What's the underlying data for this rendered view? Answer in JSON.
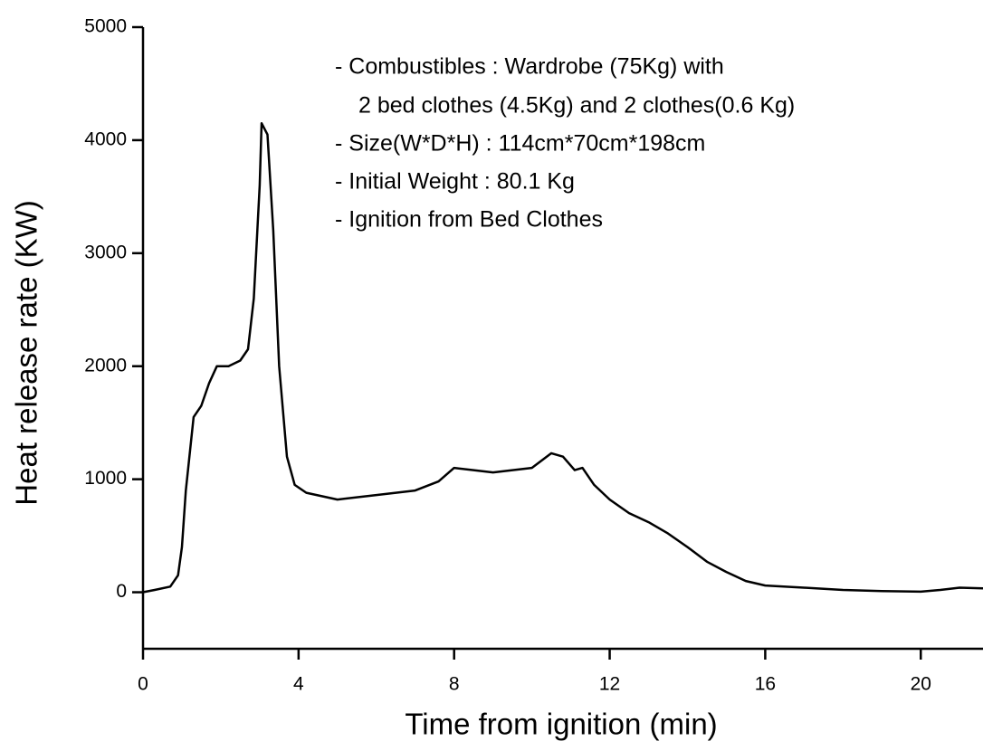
{
  "chart_data": {
    "type": "line",
    "x_label": "Time from ignition (min)",
    "y_label": "Heat release rate (KW)",
    "annotations": [
      "- Combustibles : Wardrobe (75Kg) with",
      "2 bed clothes (4.5Kg) and 2 clothes(0.6 Kg)",
      "- Size(W*D*H) : 114cm*70cm*198cm",
      "- Initial Weight : 80.1 Kg",
      "- Ignition from Bed Clothes"
    ],
    "x": [
      0,
      0.3,
      0.7,
      0.9,
      1.0,
      1.1,
      1.3,
      1.5,
      1.7,
      1.9,
      2.2,
      2.5,
      2.7,
      2.85,
      3.0,
      3.05,
      3.2,
      3.35,
      3.5,
      3.7,
      3.9,
      4.2,
      5,
      6,
      7,
      7.6,
      8,
      8.5,
      9,
      10,
      10.5,
      10.8,
      11.1,
      11.3,
      11.6,
      12,
      12.5,
      13,
      13.5,
      14,
      14.5,
      15,
      15.5,
      16,
      17,
      18,
      19,
      20,
      20.5,
      21,
      21.6
    ],
    "values": [
      0,
      20,
      50,
      150,
      400,
      900,
      1550,
      1650,
      1850,
      2000,
      2000,
      2050,
      2150,
      2600,
      3600,
      4150,
      4050,
      3200,
      2000,
      1200,
      950,
      880,
      820,
      860,
      900,
      980,
      1100,
      1080,
      1060,
      1100,
      1230,
      1200,
      1080,
      1100,
      950,
      820,
      700,
      620,
      520,
      400,
      270,
      180,
      100,
      60,
      40,
      20,
      10,
      5,
      20,
      40,
      35
    ],
    "color": "#000000",
    "xlim": [
      0,
      21.6
    ],
    "xticks": [
      0,
      4,
      8,
      12,
      16,
      20
    ],
    "ylim": [
      -500,
      5000
    ],
    "yticks": [
      0,
      1000,
      2000,
      3000,
      4000,
      5000
    ]
  }
}
